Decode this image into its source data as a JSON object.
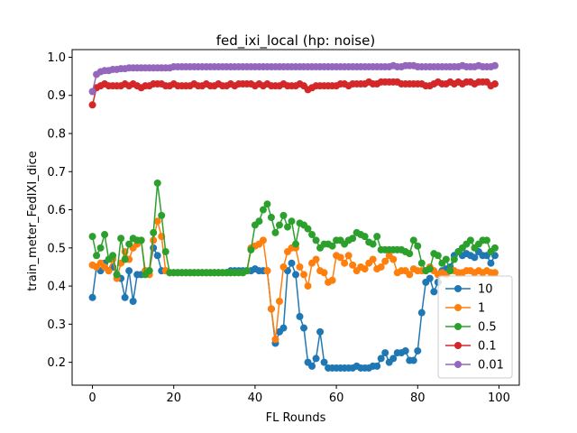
{
  "chart_data": {
    "type": "line",
    "title": "fed_ixi_local (hp: noise)",
    "xlabel": "FL Rounds",
    "ylabel": "train_meter_FedIXI_dice",
    "xlim": [
      -5,
      105
    ],
    "ylim": [
      0.14,
      1.02
    ],
    "xticks": [
      0,
      20,
      40,
      60,
      80,
      100
    ],
    "yticks": [
      0.2,
      0.3,
      0.4,
      0.5,
      0.6,
      0.7,
      0.8,
      0.9,
      1.0
    ],
    "grid": false,
    "legend_position": "lower right",
    "series": [
      {
        "name": "10",
        "color": "#1f77b4",
        "values": [
          0.37,
          0.45,
          0.44,
          0.46,
          0.44,
          0.45,
          0.43,
          0.42,
          0.37,
          0.44,
          0.36,
          0.43,
          0.43,
          0.44,
          0.44,
          0.5,
          0.48,
          0.44,
          0.44,
          0.435,
          0.435,
          0.435,
          0.435,
          0.435,
          0.435,
          0.435,
          0.435,
          0.435,
          0.435,
          0.435,
          0.435,
          0.435,
          0.435,
          0.435,
          0.44,
          0.44,
          0.44,
          0.44,
          0.44,
          0.44,
          0.445,
          0.44,
          0.44,
          0.44,
          0.34,
          0.25,
          0.28,
          0.29,
          0.44,
          0.46,
          0.43,
          0.32,
          0.29,
          0.2,
          0.19,
          0.21,
          0.28,
          0.2,
          0.185,
          0.185,
          0.185,
          0.185,
          0.185,
          0.185,
          0.185,
          0.19,
          0.185,
          0.185,
          0.185,
          0.19,
          0.19,
          0.21,
          0.225,
          0.2,
          0.21,
          0.225,
          0.225,
          0.23,
          0.205,
          0.205,
          0.23,
          0.33,
          0.41,
          0.42,
          0.385,
          0.41,
          0.44,
          0.445,
          0.45,
          0.48,
          0.49,
          0.48,
          0.485,
          0.48,
          0.475,
          0.49,
          0.48,
          0.48,
          0.46,
          0.48
        ]
      },
      {
        "name": "1",
        "color": "#ff7f0e",
        "values": [
          0.455,
          0.45,
          0.46,
          0.45,
          0.44,
          0.47,
          0.42,
          0.46,
          0.49,
          0.47,
          0.5,
          0.51,
          0.52,
          0.44,
          0.43,
          0.52,
          0.57,
          0.53,
          0.44,
          0.435,
          0.435,
          0.435,
          0.435,
          0.435,
          0.435,
          0.435,
          0.435,
          0.435,
          0.435,
          0.435,
          0.435,
          0.435,
          0.435,
          0.435,
          0.435,
          0.435,
          0.435,
          0.435,
          0.44,
          0.5,
          0.505,
          0.51,
          0.52,
          0.44,
          0.34,
          0.26,
          0.36,
          0.45,
          0.49,
          0.5,
          0.5,
          0.45,
          0.43,
          0.4,
          0.46,
          0.47,
          0.44,
          0.435,
          0.41,
          0.415,
          0.48,
          0.475,
          0.46,
          0.48,
          0.455,
          0.44,
          0.45,
          0.445,
          0.46,
          0.47,
          0.445,
          0.45,
          0.465,
          0.48,
          0.47,
          0.435,
          0.44,
          0.44,
          0.43,
          0.445,
          0.44,
          0.44,
          0.44,
          0.45,
          0.44,
          0.43,
          0.435,
          0.43,
          0.44,
          0.44,
          0.435,
          0.435,
          0.44,
          0.44,
          0.435,
          0.44,
          0.435,
          0.44,
          0.435,
          0.435
        ]
      },
      {
        "name": "0.5",
        "color": "#2ca02c",
        "values": [
          0.53,
          0.48,
          0.5,
          0.535,
          0.47,
          0.48,
          0.43,
          0.525,
          0.47,
          0.51,
          0.525,
          0.52,
          0.52,
          0.43,
          0.44,
          0.54,
          0.67,
          0.585,
          0.49,
          0.435,
          0.435,
          0.435,
          0.435,
          0.435,
          0.435,
          0.435,
          0.435,
          0.435,
          0.435,
          0.435,
          0.435,
          0.435,
          0.435,
          0.435,
          0.435,
          0.435,
          0.435,
          0.435,
          0.44,
          0.495,
          0.56,
          0.57,
          0.6,
          0.615,
          0.58,
          0.54,
          0.56,
          0.585,
          0.555,
          0.57,
          0.51,
          0.565,
          0.56,
          0.55,
          0.535,
          0.52,
          0.5,
          0.51,
          0.51,
          0.505,
          0.52,
          0.52,
          0.51,
          0.52,
          0.525,
          0.54,
          0.535,
          0.53,
          0.515,
          0.51,
          0.53,
          0.495,
          0.495,
          0.495,
          0.495,
          0.495,
          0.495,
          0.49,
          0.485,
          0.52,
          0.505,
          0.46,
          0.44,
          0.445,
          0.485,
          0.48,
          0.46,
          0.47,
          0.44,
          0.47,
          0.49,
          0.5,
          0.51,
          0.52,
          0.5,
          0.51,
          0.52,
          0.52,
          0.49,
          0.5
        ]
      },
      {
        "name": "0.1",
        "color": "#d62728",
        "values": [
          0.875,
          0.92,
          0.925,
          0.93,
          0.925,
          0.925,
          0.925,
          0.925,
          0.93,
          0.925,
          0.93,
          0.925,
          0.92,
          0.925,
          0.925,
          0.93,
          0.93,
          0.93,
          0.925,
          0.925,
          0.93,
          0.925,
          0.925,
          0.925,
          0.925,
          0.93,
          0.925,
          0.925,
          0.93,
          0.925,
          0.925,
          0.93,
          0.925,
          0.925,
          0.93,
          0.925,
          0.93,
          0.93,
          0.93,
          0.93,
          0.925,
          0.93,
          0.925,
          0.93,
          0.925,
          0.925,
          0.925,
          0.93,
          0.925,
          0.925,
          0.925,
          0.93,
          0.925,
          0.915,
          0.92,
          0.925,
          0.925,
          0.925,
          0.925,
          0.925,
          0.925,
          0.93,
          0.93,
          0.925,
          0.93,
          0.93,
          0.93,
          0.93,
          0.935,
          0.93,
          0.93,
          0.935,
          0.935,
          0.935,
          0.935,
          0.935,
          0.93,
          0.93,
          0.93,
          0.93,
          0.93,
          0.93,
          0.925,
          0.925,
          0.93,
          0.935,
          0.93,
          0.93,
          0.935,
          0.93,
          0.935,
          0.93,
          0.935,
          0.935,
          0.93,
          0.935,
          0.935,
          0.935,
          0.925,
          0.93
        ]
      },
      {
        "name": "0.01",
        "color": "#9467bd",
        "values": [
          0.91,
          0.955,
          0.962,
          0.965,
          0.965,
          0.968,
          0.968,
          0.97,
          0.97,
          0.972,
          0.972,
          0.972,
          0.972,
          0.972,
          0.972,
          0.972,
          0.972,
          0.972,
          0.972,
          0.972,
          0.975,
          0.975,
          0.975,
          0.975,
          0.975,
          0.975,
          0.975,
          0.975,
          0.975,
          0.975,
          0.975,
          0.975,
          0.975,
          0.975,
          0.975,
          0.975,
          0.975,
          0.975,
          0.975,
          0.975,
          0.975,
          0.975,
          0.975,
          0.975,
          0.975,
          0.975,
          0.975,
          0.975,
          0.975,
          0.975,
          0.975,
          0.975,
          0.975,
          0.975,
          0.975,
          0.975,
          0.975,
          0.975,
          0.975,
          0.975,
          0.975,
          0.975,
          0.975,
          0.975,
          0.975,
          0.975,
          0.975,
          0.975,
          0.975,
          0.975,
          0.975,
          0.975,
          0.975,
          0.975,
          0.978,
          0.975,
          0.975,
          0.978,
          0.978,
          0.978,
          0.975,
          0.975,
          0.975,
          0.975,
          0.975,
          0.975,
          0.975,
          0.975,
          0.975,
          0.975,
          0.975,
          0.978,
          0.975,
          0.975,
          0.975,
          0.978,
          0.975,
          0.975,
          0.975,
          0.978
        ]
      }
    ]
  }
}
